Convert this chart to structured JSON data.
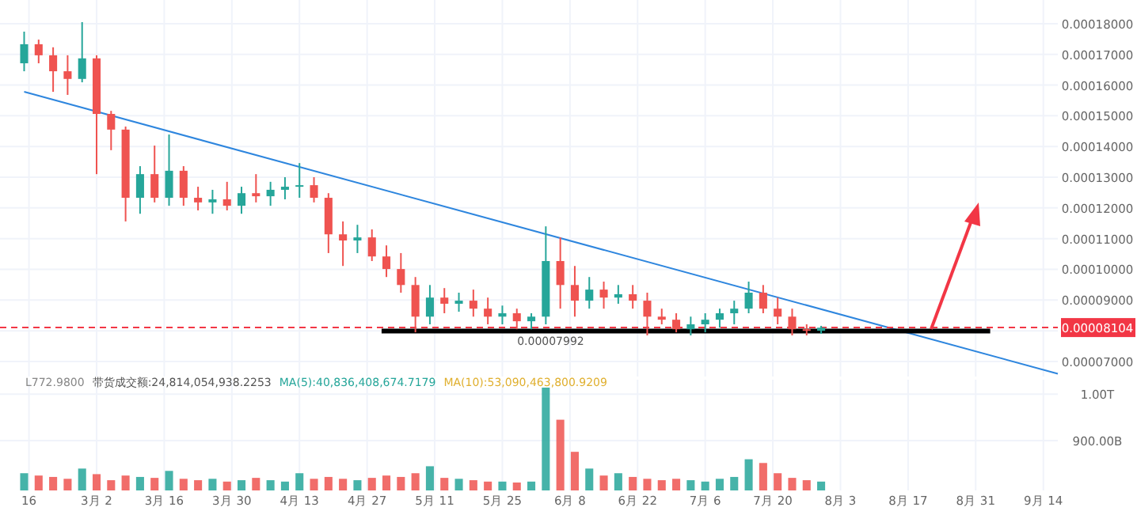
{
  "chart_data": [
    {
      "type": "candlestick",
      "tick_labels": "y",
      "grid": true,
      "x": [
        "--02-15",
        "--02-18",
        "--02-21",
        "--02-24",
        "--02-27",
        "--03-02",
        "--03-05",
        "--03-08",
        "--03-11",
        "--03-14",
        "--03-17",
        "--03-20",
        "--03-23",
        "--03-26",
        "--03-29",
        "--04-01",
        "--04-04",
        "--04-07",
        "--04-10",
        "--04-13",
        "--04-16",
        "--04-19",
        "--04-22",
        "--04-25",
        "--04-28",
        "--05-01",
        "--05-04",
        "--05-07",
        "--05-10",
        "--05-13",
        "--05-16",
        "--05-19",
        "--05-22",
        "--05-25",
        "--05-28",
        "--05-31",
        "--06-03",
        "--06-06",
        "--06-09",
        "--06-12",
        "--06-15",
        "--06-18",
        "--06-21",
        "--06-24",
        "--06-27",
        "--06-30",
        "--07-03",
        "--07-06",
        "--07-09",
        "--07-12",
        "--07-15",
        "--07-18",
        "--07-21",
        "--07-24",
        "--07-27",
        "--07-30"
      ],
      "ohlc": [
        [
          0.0001671,
          0.0001774,
          0.0001645,
          0.0001733
        ],
        [
          0.0001733,
          0.0001748,
          0.0001671,
          0.0001697
        ],
        [
          0.0001697,
          0.0001723,
          0.0001578,
          0.0001645
        ],
        [
          0.0001645,
          0.0001697,
          0.0001568,
          0.000162
        ],
        [
          0.000162,
          0.0001805,
          0.0001609,
          0.0001687
        ],
        [
          0.0001687,
          0.0001697,
          0.000131,
          0.0001506
        ],
        [
          0.0001506,
          0.0001516,
          0.0001388,
          0.0001455
        ],
        [
          0.0001455,
          0.0001465,
          0.0001156,
          0.0001233
        ],
        [
          0.0001233,
          0.0001336,
          0.0001181,
          0.000131
        ],
        [
          0.000131,
          0.0001403,
          0.0001218,
          0.0001233
        ],
        [
          0.0001233,
          0.0001439,
          0.0001207,
          0.0001321
        ],
        [
          0.0001321,
          0.0001336,
          0.0001207,
          0.0001233
        ],
        [
          0.0001233,
          0.0001269,
          0.0001192,
          0.0001218
        ],
        [
          0.0001218,
          0.0001259,
          0.0001181,
          0.0001228
        ],
        [
          0.0001228,
          0.0001285,
          0.0001192,
          0.0001207
        ],
        [
          0.0001207,
          0.0001269,
          0.0001181,
          0.0001248
        ],
        [
          0.0001248,
          0.000131,
          0.0001218,
          0.0001238
        ],
        [
          0.0001238,
          0.0001285,
          0.0001207,
          0.0001259
        ],
        [
          0.0001259,
          0.00013,
          0.0001228,
          0.0001269
        ],
        [
          0.0001269,
          0.0001346,
          0.0001233,
          0.0001274
        ],
        [
          0.0001274,
          0.00013,
          0.0001218,
          0.0001233
        ],
        [
          0.0001233,
          0.0001248,
          0.0001053,
          0.0001114
        ],
        [
          0.0001114,
          0.0001156,
          0.0001011,
          0.0001094
        ],
        [
          0.0001094,
          0.0001145,
          0.0001053,
          0.0001104
        ],
        [
          0.0001104,
          0.000113,
          0.0001027,
          0.0001042
        ],
        [
          0.0001042,
          0.0001078,
          9.75e-05,
          0.0001001
        ],
        [
          0.0001001,
          0.0001053,
          9.24e-05,
          9.49e-05
        ],
        [
          9.49e-05,
          9.75e-05,
          7.95e-05,
          8.46e-05
        ],
        [
          8.46e-05,
          9.49e-05,
          8.21e-05,
          9.08e-05
        ],
        [
          9.08e-05,
          9.39e-05,
          8.57e-05,
          8.88e-05
        ],
        [
          8.88e-05,
          9.24e-05,
          8.62e-05,
          8.98e-05
        ],
        [
          8.98e-05,
          9.34e-05,
          8.46e-05,
          8.72e-05
        ],
        [
          8.72e-05,
          9.08e-05,
          8.21e-05,
          8.46e-05
        ],
        [
          8.46e-05,
          8.82e-05,
          8.21e-05,
          8.57e-05
        ],
        [
          8.57e-05,
          8.72e-05,
          8.05e-05,
          8.31e-05
        ],
        [
          8.31e-05,
          8.57e-05,
          8.05e-05,
          8.46e-05
        ],
        [
          8.46e-05,
          0.000114,
          8.21e-05,
          0.0001027
        ],
        [
          0.0001027,
          0.0001104,
          8.72e-05,
          9.49e-05
        ],
        [
          9.49e-05,
          0.0001011,
          8.46e-05,
          8.98e-05
        ],
        [
          8.98e-05,
          9.75e-05,
          8.72e-05,
          9.34e-05
        ],
        [
          9.34e-05,
          9.6e-05,
          8.72e-05,
          9.08e-05
        ],
        [
          9.08e-05,
          9.49e-05,
          8.88e-05,
          9.19e-05
        ],
        [
          9.19e-05,
          9.49e-05,
          8.72e-05,
          8.98e-05
        ],
        [
          8.98e-05,
          9.24e-05,
          7.85e-05,
          8.46e-05
        ],
        [
          8.46e-05,
          8.72e-05,
          8.21e-05,
          8.36e-05
        ],
        [
          8.36e-05,
          8.57e-05,
          7.95e-05,
          8.05e-05
        ],
        [
          8.05e-05,
          8.46e-05,
          7.85e-05,
          8.21e-05
        ],
        [
          8.21e-05,
          8.57e-05,
          7.95e-05,
          8.36e-05
        ],
        [
          8.36e-05,
          8.72e-05,
          8.1e-05,
          8.57e-05
        ],
        [
          8.57e-05,
          8.98e-05,
          8.21e-05,
          8.72e-05
        ],
        [
          8.72e-05,
          9.6e-05,
          8.57e-05,
          9.24e-05
        ],
        [
          9.24e-05,
          9.49e-05,
          8.57e-05,
          8.72e-05
        ],
        [
          8.72e-05,
          9.08e-05,
          8.21e-05,
          8.46e-05
        ],
        [
          8.46e-05,
          8.72e-05,
          7.85e-05,
          8.05e-05
        ],
        [
          8.05e-05,
          8.21e-05,
          7.85e-05,
          8e-05
        ],
        [
          8e-05,
          8.16e-05,
          7.9e-05,
          8.1e-05
        ]
      ],
      "colors": [
        "#26a69a",
        "#ef5350",
        "#ef5350",
        "#ef5350",
        "#26a69a",
        "#ef5350",
        "#ef5350",
        "#ef5350",
        "#26a69a",
        "#ef5350",
        "#26a69a",
        "#ef5350",
        "#ef5350",
        "#26a69a",
        "#ef5350",
        "#26a69a",
        "#ef5350",
        "#26a69a",
        "#26a69a",
        "#26a69a",
        "#ef5350",
        "#ef5350",
        "#ef5350",
        "#26a69a",
        "#ef5350",
        "#ef5350",
        "#ef5350",
        "#ef5350",
        "#26a69a",
        "#ef5350",
        "#26a69a",
        "#ef5350",
        "#ef5350",
        "#26a69a",
        "#ef5350",
        "#26a69a",
        "#26a69a",
        "#ef5350",
        "#ef5350",
        "#26a69a",
        "#ef5350",
        "#26a69a",
        "#ef5350",
        "#ef5350",
        "#ef5350",
        "#ef5350",
        "#26a69a",
        "#26a69a",
        "#26a69a",
        "#26a69a",
        "#26a69a",
        "#ef5350",
        "#ef5350",
        "#ef5350",
        "#ef5350",
        "#26a69a"
      ],
      "series": [
        {
          "type": "line",
          "x": [
            "--02-15",
            "--09-17"
          ],
          "values": [
            0.0001578,
            6.6e-05
          ],
          "color": "#2e86de"
        },
        {
          "type": "line",
          "x": [
            "--04-30",
            "--09-03"
          ],
          "values": [
            7.992e-05,
            7.992e-05
          ],
          "color": "#000000"
        }
      ],
      "ref_lines": [
        {
          "axis": "y",
          "value": 8.104e-05,
          "label": "0.00008104",
          "color": "#f23645",
          "line_style": "dashed"
        }
      ],
      "annotations": [
        {
          "text": "0.00007992",
          "x": "--06-04",
          "y": 7.992e-05
        }
      ],
      "xlim": [
        "--02-10",
        "--09-17"
      ],
      "ylim": [
        6.51e-05,
        0.0001877
      ],
      "yticks": [
        {
          "value": 7e-05,
          "label": "0.00007000"
        },
        {
          "value": 8e-05,
          "label": null
        },
        {
          "value": 9e-05,
          "label": "0.00009000"
        },
        {
          "value": 0.0001,
          "label": "0.00010000"
        },
        {
          "value": 0.00011,
          "label": "0.00011000"
        },
        {
          "value": 0.00012,
          "label": "0.00012000"
        },
        {
          "value": 0.00013,
          "label": "0.00013000"
        },
        {
          "value": 0.00014,
          "label": "0.00014000"
        },
        {
          "value": 0.00015,
          "label": "0.00015000"
        },
        {
          "value": 0.00016,
          "label": "0.00016000"
        },
        {
          "value": 0.00017,
          "label": "0.00017000"
        },
        {
          "value": 0.00018,
          "label": "0.00018000"
        }
      ],
      "xticks": [
        {
          "value": "--02-16",
          "label": null
        },
        {
          "value": "--03-02",
          "label": null
        },
        {
          "value": "--03-16",
          "label": null
        },
        {
          "value": "--03-30",
          "label": null
        },
        {
          "value": "--04-13",
          "label": null
        },
        {
          "value": "--04-27",
          "label": null
        },
        {
          "value": "--05-11",
          "label": null
        },
        {
          "value": "--05-25",
          "label": null
        },
        {
          "value": "--06-08",
          "label": null
        },
        {
          "value": "--06-22",
          "label": null
        },
        {
          "value": "--07-06",
          "label": null
        },
        {
          "value": "--07-20",
          "label": null
        },
        {
          "value": "--08-03",
          "label": null
        },
        {
          "value": "--08-17",
          "label": null
        },
        {
          "value": "--08-31",
          "label": null
        },
        {
          "value": "--09-14",
          "label": null
        }
      ]
    },
    {
      "type": "bar",
      "grid": true,
      "x": [
        "--02-15",
        "--02-18",
        "--02-21",
        "--02-24",
        "--02-27",
        "--03-02",
        "--03-05",
        "--03-08",
        "--03-11",
        "--03-14",
        "--03-17",
        "--03-20",
        "--03-23",
        "--03-26",
        "--03-29",
        "--04-01",
        "--04-04",
        "--04-07",
        "--04-10",
        "--04-13",
        "--04-16",
        "--04-19",
        "--04-22",
        "--04-25",
        "--04-28",
        "--05-01",
        "--05-04",
        "--05-07",
        "--05-10",
        "--05-13",
        "--05-16",
        "--05-19",
        "--05-22",
        "--05-25",
        "--05-28",
        "--05-31",
        "--06-03",
        "--06-06",
        "--06-09",
        "--06-12",
        "--06-15",
        "--06-18",
        "--06-21",
        "--06-24",
        "--06-27",
        "--06-30",
        "--07-03",
        "--07-06",
        "--07-09",
        "--07-12",
        "--07-15",
        "--07-18",
        "--07-21",
        "--07-24",
        "--07-27",
        "--07-30"
      ],
      "values": [
        830000000000.0,
        825000000000.0,
        822000000000.0,
        818000000000.0,
        840000000000.0,
        828000000000.0,
        815000000000.0,
        825000000000.0,
        822000000000.0,
        820000000000.0,
        835000000000.0,
        818000000000.0,
        815000000000.0,
        818000000000.0,
        812000000000.0,
        815000000000.0,
        820000000000.0,
        815000000000.0,
        812000000000.0,
        830000000000.0,
        818000000000.0,
        822000000000.0,
        818000000000.0,
        815000000000.0,
        820000000000.0,
        825000000000.0,
        822000000000.0,
        830000000000.0,
        845000000000.0,
        820000000000.0,
        818000000000.0,
        815000000000.0,
        812000000000.0,
        812000000000.0,
        810000000000.0,
        812000000000.0,
        1014000000000.0,
        945000000000.0,
        876000000000.0,
        840000000000.0,
        825000000000.0,
        830000000000.0,
        822000000000.0,
        818000000000.0,
        815000000000.0,
        818000000000.0,
        815000000000.0,
        812000000000.0,
        818000000000.0,
        822000000000.0,
        860000000000.0,
        852000000000.0,
        830000000000.0,
        820000000000.0,
        815000000000.0,
        812000000000.0
      ],
      "colors": [
        "#26a69a",
        "#ef5350",
        "#ef5350",
        "#ef5350",
        "#26a69a",
        "#ef5350",
        "#ef5350",
        "#ef5350",
        "#26a69a",
        "#ef5350",
        "#26a69a",
        "#ef5350",
        "#ef5350",
        "#26a69a",
        "#ef5350",
        "#26a69a",
        "#ef5350",
        "#26a69a",
        "#26a69a",
        "#26a69a",
        "#ef5350",
        "#ef5350",
        "#ef5350",
        "#26a69a",
        "#ef5350",
        "#ef5350",
        "#ef5350",
        "#ef5350",
        "#26a69a",
        "#ef5350",
        "#26a69a",
        "#ef5350",
        "#ef5350",
        "#26a69a",
        "#ef5350",
        "#26a69a",
        "#26a69a",
        "#ef5350",
        "#ef5350",
        "#26a69a",
        "#ef5350",
        "#26a69a",
        "#ef5350",
        "#ef5350",
        "#ef5350",
        "#ef5350",
        "#26a69a",
        "#26a69a",
        "#26a69a",
        "#26a69a",
        "#26a69a",
        "#ef5350",
        "#ef5350",
        "#ef5350",
        "#ef5350",
        "#26a69a"
      ],
      "annotations": [
        "L772.9800",
        "带货成交额:24,814,054,938.2253",
        "MA(5):40,836,408,674.7179",
        "MA(10):53,090,463,800.9209"
      ],
      "xlim": [
        "--02-10",
        "--09-17"
      ],
      "ylim": [
        793000000000.0,
        1031000000000.0
      ],
      "yticks": [
        {
          "value": 900000000000.0,
          "label": "900.00B"
        },
        {
          "value": 1000000000000.0,
          "label": "1.00T"
        }
      ],
      "xticks": [
        {
          "value": "--02-16",
          "label": "16"
        },
        {
          "value": "--03-02",
          "label": "3月 2"
        },
        {
          "value": "--03-16",
          "label": "3月 16"
        },
        {
          "value": "--03-30",
          "label": "3月 30"
        },
        {
          "value": "--04-13",
          "label": "4月 13"
        },
        {
          "value": "--04-27",
          "label": "4月 27"
        },
        {
          "value": "--05-11",
          "label": "5月 11"
        },
        {
          "value": "--05-25",
          "label": "5月 25"
        },
        {
          "value": "--06-08",
          "label": "6月 8"
        },
        {
          "value": "--06-22",
          "label": "6月 22"
        },
        {
          "value": "--07-06",
          "label": "7月 6"
        },
        {
          "value": "--07-20",
          "label": "7月 20"
        },
        {
          "value": "--08-03",
          "label": "8月 3"
        },
        {
          "value": "--08-17",
          "label": "8月 17"
        },
        {
          "value": "--08-31",
          "label": "8月 31"
        },
        {
          "value": "--09-14",
          "label": "9月 14"
        }
      ]
    }
  ]
}
